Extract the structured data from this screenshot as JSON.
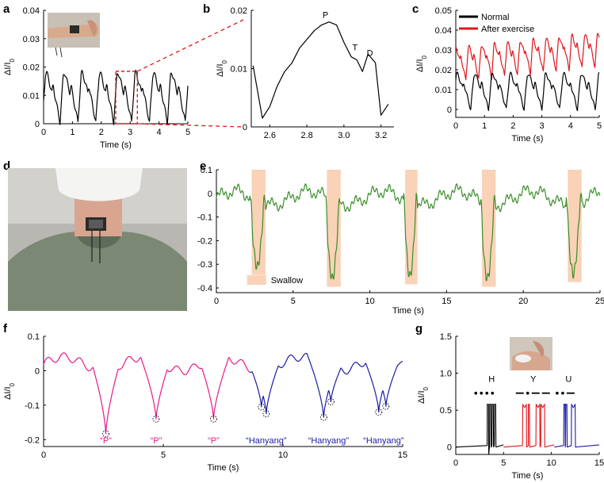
{
  "panels": {
    "a": {
      "label": "a"
    },
    "b": {
      "label": "b"
    },
    "c": {
      "label": "c"
    },
    "d": {
      "label": "d"
    },
    "e": {
      "label": "e"
    },
    "f": {
      "label": "f"
    },
    "g": {
      "label": "g"
    }
  },
  "chart_data": [
    {
      "id": "a",
      "type": "line",
      "xlabel": "Time (s)",
      "ylabel": "ΔI/I0",
      "xlim": [
        0,
        5
      ],
      "ylim": [
        0,
        0.04
      ],
      "xticks": [
        0,
        1,
        2,
        3,
        4,
        5
      ],
      "yticks": [
        0,
        0.01,
        0.02,
        0.03,
        0.04
      ],
      "ytick_labels": [
        "0",
        "0.01",
        "0.02",
        "0.03",
        "0.04"
      ],
      "period": 0.62,
      "peak": 0.018,
      "baseline": 0.0005,
      "highlight_box": [
        2.5,
        3.25
      ],
      "color": "#000000",
      "inset": "wrist-photo"
    },
    {
      "id": "b",
      "type": "line",
      "xlabel": "",
      "ylabel": "ΔI/I0",
      "xlim": [
        2.5,
        3.27
      ],
      "ylim": [
        0,
        0.02
      ],
      "xticks": [
        2.6,
        2.8,
        3.0,
        3.2
      ],
      "xtick_labels": [
        "2.6",
        "2.8",
        "3.0",
        "3.2"
      ],
      "yticks": [
        0,
        0.01,
        0.02
      ],
      "ytick_labels": [
        "0",
        "0.01",
        "0.02"
      ],
      "x": [
        2.51,
        2.56,
        2.6,
        2.64,
        2.68,
        2.72,
        2.76,
        2.8,
        2.84,
        2.88,
        2.92,
        2.96,
        3.0,
        3.04,
        3.07,
        3.1,
        3.13,
        3.17,
        3.2,
        3.24
      ],
      "y": [
        0.0105,
        0.0015,
        0.0035,
        0.007,
        0.0095,
        0.011,
        0.0135,
        0.015,
        0.0165,
        0.0175,
        0.018,
        0.0175,
        0.0145,
        0.012,
        0.0115,
        0.0095,
        0.0125,
        0.011,
        0.002,
        0.0039
      ],
      "annotations": [
        {
          "text": "P",
          "x": 2.9,
          "y": 0.0183
        },
        {
          "text": "T",
          "x": 3.06,
          "y": 0.0127
        },
        {
          "text": "D",
          "x": 3.14,
          "y": 0.0118
        }
      ],
      "color": "#000000"
    },
    {
      "id": "c",
      "type": "line",
      "xlabel": "Time (s)",
      "ylabel": "ΔI/I0",
      "xlim": [
        0,
        5
      ],
      "ylim": [
        -0.004,
        0.05
      ],
      "xticks": [
        0,
        1,
        2,
        3,
        4,
        5
      ],
      "yticks": [
        0,
        0.01,
        0.02,
        0.03,
        0.04,
        0.05
      ],
      "ytick_labels": [
        "0",
        "0.01",
        "0.02",
        "0.03",
        "0.04",
        "0.05"
      ],
      "legend_position": "top-left",
      "series": [
        {
          "name": "Normal",
          "color": "#000000",
          "period": 0.62,
          "peak": 0.018,
          "baseline": 0.0,
          "trend": 0.0
        },
        {
          "name": "After exercise",
          "color": "#e0161c",
          "period": 0.45,
          "peak": 0.031,
          "baseline": 0.014,
          "trend": 0.0015
        }
      ]
    },
    {
      "id": "e",
      "type": "line",
      "xlabel": "Time (s)",
      "ylabel": "ΔI/I0",
      "xlim": [
        0,
        25
      ],
      "ylim": [
        -0.42,
        0.1
      ],
      "xticks": [
        0,
        5,
        10,
        15,
        20,
        25
      ],
      "yticks": [
        -0.4,
        -0.3,
        -0.2,
        -0.1,
        0,
        0.1
      ],
      "ytick_labels": [
        "-0.4",
        "-0.3",
        "-0.2",
        "-0.1",
        "0",
        "0.1"
      ],
      "color": "#3a8f2a",
      "legend": {
        "label": "Swallow",
        "color": "#f9d2b8",
        "position": "bottom-left"
      },
      "swallow_regions": [
        [
          2.3,
          3.2
        ],
        [
          7.2,
          8.1
        ],
        [
          12.3,
          13.1
        ],
        [
          17.3,
          18.2
        ],
        [
          22.9,
          23.8
        ]
      ],
      "dip_min": [
        -0.33,
        -0.38,
        -0.37,
        -0.38,
        -0.36
      ]
    },
    {
      "id": "f",
      "type": "line",
      "xlabel": "Time (s)",
      "ylabel": "ΔI/I0",
      "xlim": [
        0,
        15
      ],
      "ylim": [
        -0.22,
        0.1
      ],
      "xticks": [
        0,
        5,
        10,
        15
      ],
      "yticks": [
        -0.2,
        -0.1,
        0,
        0.1
      ],
      "ytick_labels": [
        "-0.2",
        "-0.1",
        "0",
        "0.1"
      ],
      "series": [
        {
          "name": "“P”",
          "color": "#e8198b",
          "range": [
            0,
            8.6
          ]
        },
        {
          "name": "“Hanyang”",
          "color": "#1c1ca8",
          "range": [
            8.6,
            15
          ]
        }
      ],
      "marked_minima": [
        {
          "x": 2.6,
          "y": -0.183
        },
        {
          "x": 4.7,
          "y": -0.14
        },
        {
          "x": 7.1,
          "y": -0.14
        },
        {
          "x": 9.1,
          "y": -0.105
        },
        {
          "x": 9.3,
          "y": -0.125
        },
        {
          "x": 11.7,
          "y": -0.135
        },
        {
          "x": 12.0,
          "y": -0.09
        },
        {
          "x": 14.0,
          "y": -0.12
        },
        {
          "x": 14.3,
          "y": -0.103
        }
      ],
      "word_labels": [
        {
          "text": "“P”",
          "x": 2.6,
          "color": "#e8198b"
        },
        {
          "text": "“P”",
          "x": 4.7,
          "color": "#e8198b"
        },
        {
          "text": "“P”",
          "x": 7.1,
          "color": "#e8198b"
        },
        {
          "text": "“Hanyang”",
          "x": 9.3,
          "color": "#1c1ca8"
        },
        {
          "text": "“Hanyang”",
          "x": 11.9,
          "color": "#1c1ca8"
        },
        {
          "text": "“Hanyang”",
          "x": 14.2,
          "color": "#1c1ca8"
        }
      ]
    },
    {
      "id": "g",
      "type": "line",
      "xlabel": "Time (s)",
      "ylabel": "ΔI/I0",
      "xlim": [
        0,
        15
      ],
      "ylim": [
        -0.1,
        1.5
      ],
      "xticks": [
        0,
        5,
        10,
        15
      ],
      "yticks": [
        0,
        0.5,
        1.0,
        1.5
      ],
      "ytick_labels": [
        "0",
        "0.5",
        "1.0",
        "1.5"
      ],
      "series": [
        {
          "name": "H",
          "color": "#000000",
          "pulses": [
            3.3,
            3.55,
            3.8,
            4.05
          ],
          "widths": [
            0.12,
            0.12,
            0.12,
            0.12
          ],
          "range": [
            0,
            5
          ]
        },
        {
          "name": "Y",
          "color": "#e0161c",
          "pulses": [
            7.0,
            7.6,
            8.4,
            8.9
          ],
          "widths": [
            0.38,
            0.1,
            0.38,
            0.38
          ],
          "range": [
            5,
            10.3
          ]
        },
        {
          "name": "U",
          "color": "#1c1ca8",
          "pulses": [
            11.3,
            11.5,
            12.1
          ],
          "widths": [
            0.12,
            0.12,
            0.38
          ],
          "range": [
            10.3,
            15
          ]
        }
      ],
      "morse": [
        {
          "letter": "H",
          "x": 3.75,
          "code": "...."
        },
        {
          "letter": "Y",
          "x": 8.1,
          "code": "-.--"
        },
        {
          "letter": "U",
          "x": 11.8,
          "code": "..-"
        }
      ],
      "pulse_height": 0.58,
      "inset": "wrist-tap-photo"
    }
  ]
}
